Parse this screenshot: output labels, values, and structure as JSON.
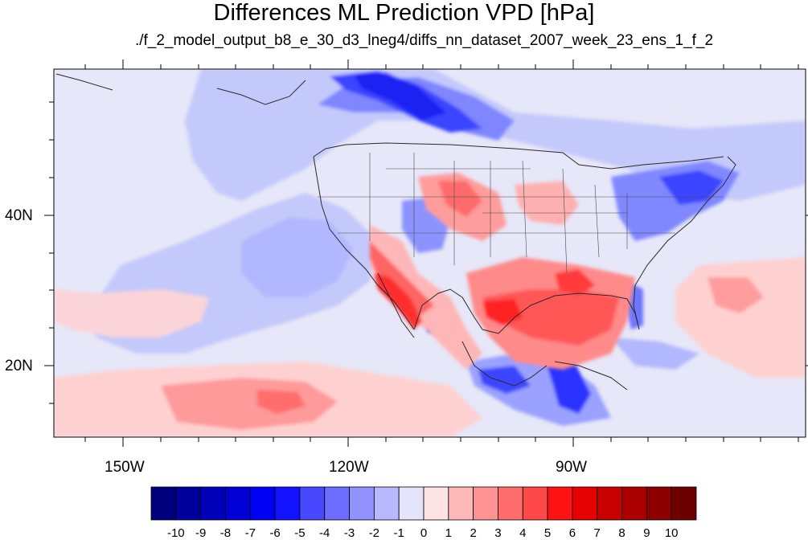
{
  "title": "Differences ML Prediction VPD [hPa]",
  "subtitle": "./f_2_model_output_b8_e_30_d3_lneg4/diffs_nn_dataset_2007_week_23_ens_1_f_2",
  "axes": {
    "lon_labels": [
      "150W",
      "120W",
      "90W"
    ],
    "lat_labels": [
      "40N",
      "20N"
    ]
  },
  "colorbar": {
    "labels": [
      "-10",
      "-9",
      "-8",
      "-7",
      "-6",
      "-5",
      "-4",
      "-3",
      "-2",
      "-1",
      "0",
      "1",
      "2",
      "3",
      "4",
      "5",
      "6",
      "7",
      "8",
      "9",
      "10"
    ],
    "colors": [
      "#00007f",
      "#00009c",
      "#0000b9",
      "#0000d7",
      "#0000f4",
      "#1212ff",
      "#4848ff",
      "#6d6dff",
      "#9292ff",
      "#b8b8ff",
      "#e4e4fa",
      "#fde3e3",
      "#ffb8b8",
      "#ff9292",
      "#ff6d6d",
      "#ff4848",
      "#ff1212",
      "#e60000",
      "#c80000",
      "#aa0000",
      "#8c0000",
      "#6e0000"
    ]
  },
  "colors": {
    "background": "#e4e6f8",
    "pos_medium": "#ff6d6d",
    "neg_strong": "#0000d7"
  }
}
